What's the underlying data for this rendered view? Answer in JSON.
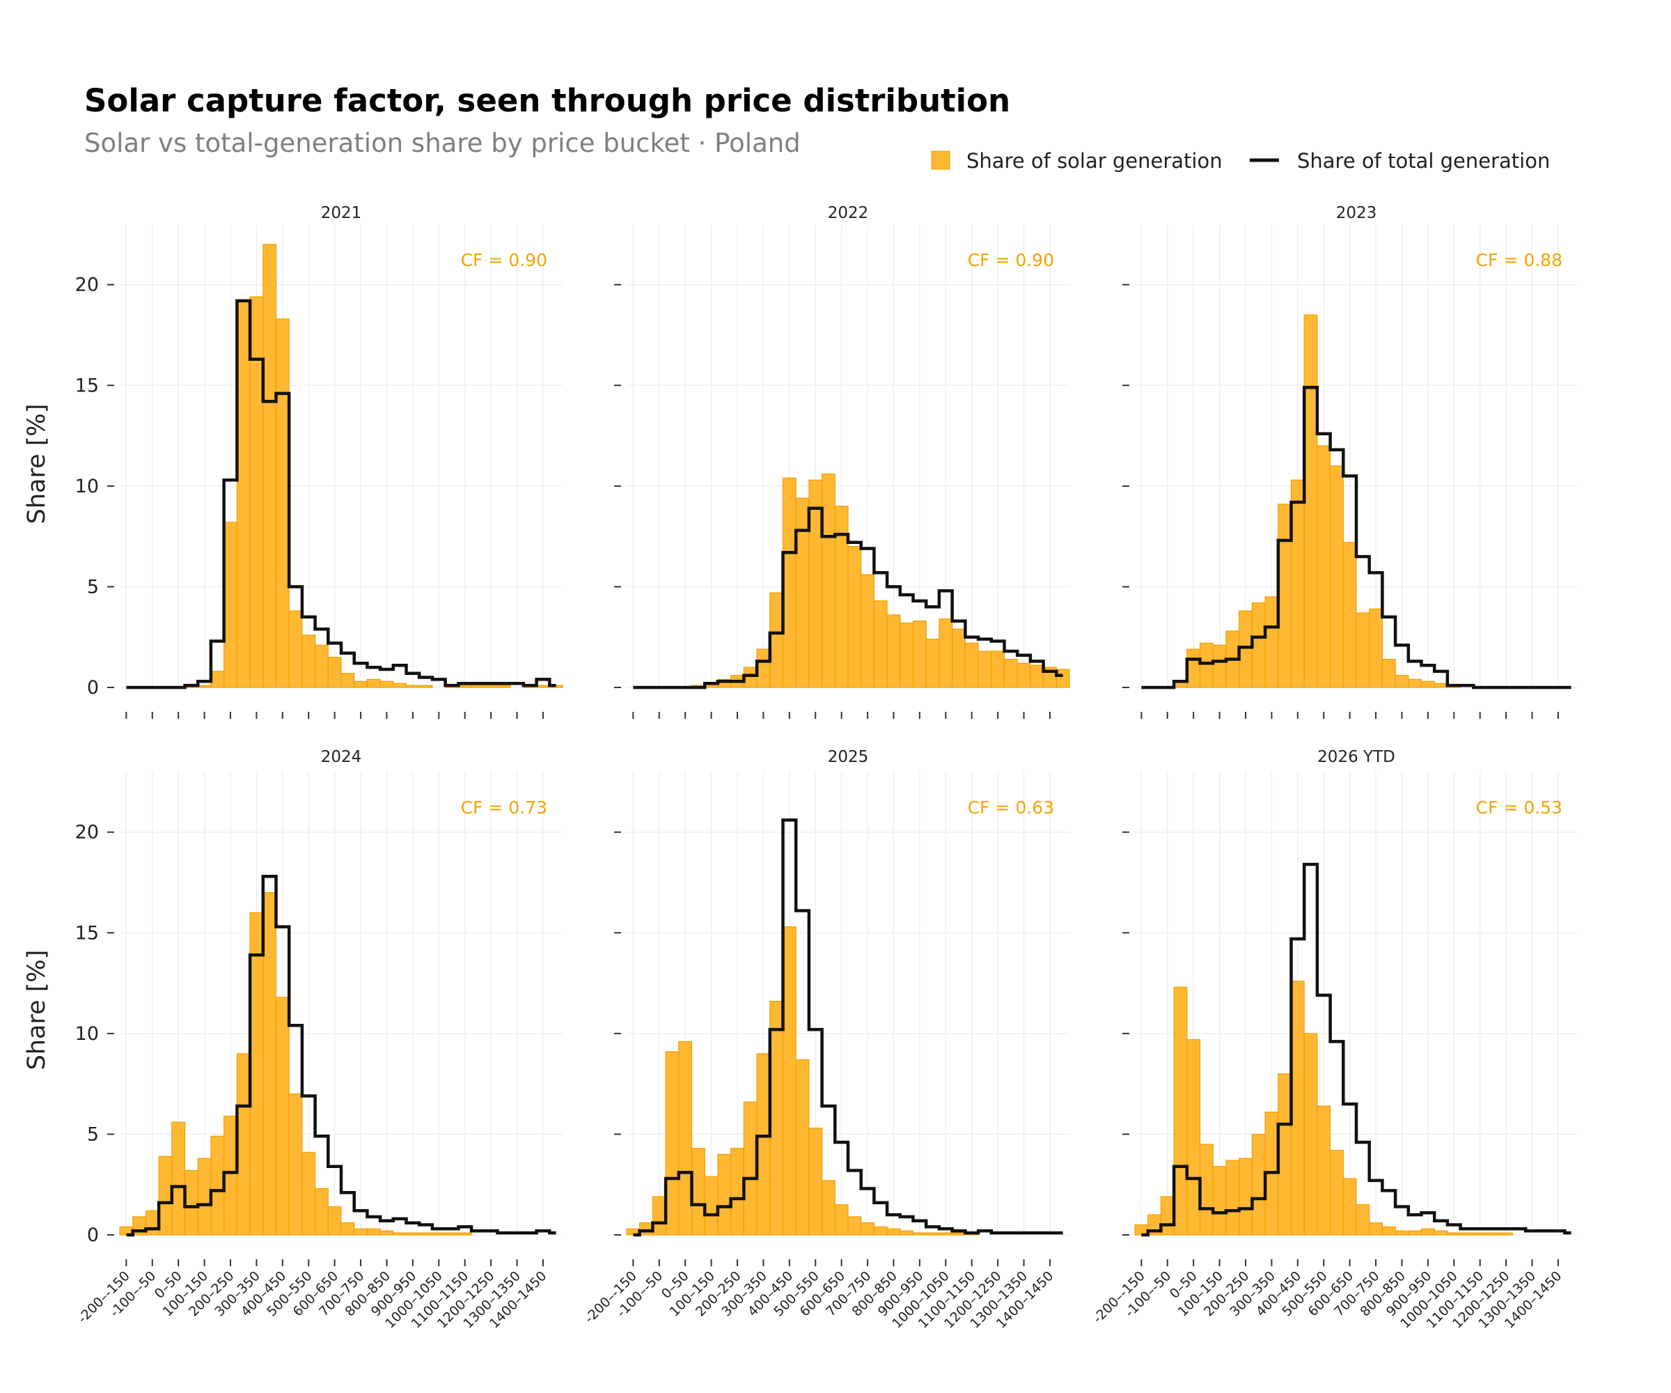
{
  "title": "Solar capture factor, seen through price distribution",
  "subtitle": "Solar vs total-generation share by price bucket · Poland",
  "legend": [
    {
      "label": "Share of solar generation",
      "kind": "bar",
      "color": "#ffb833"
    },
    {
      "label": "Share of total generation",
      "kind": "line",
      "color": "#111111"
    }
  ],
  "colors": {
    "solar_fill": "#ffb833",
    "solar_edge": "#f0a000",
    "total_line": "#111111",
    "cf_text": "#f4a300",
    "grid": "#ececec"
  },
  "chart_data": {
    "type": "bar",
    "ylabel": "Share [%]",
    "ylim": [
      0,
      23
    ],
    "yticks": [
      0,
      5,
      10,
      15,
      20
    ],
    "x_tick_labels": [
      "-200–-150",
      "-100–-50",
      "0–50",
      "100–150",
      "200–250",
      "300–350",
      "400–450",
      "500–550",
      "600–650",
      "700–750",
      "800–850",
      "900–950",
      "1000–1050",
      "1100–1150",
      "1200–1250",
      "1300–1350",
      "1400–1450"
    ],
    "categories": [
      "-200–-150",
      "-150–-100",
      "-100–-50",
      "-50–0",
      "0–50",
      "50–100",
      "100–150",
      "150–200",
      "200–250",
      "250–300",
      "300–350",
      "350–400",
      "400–450",
      "450–500",
      "500–550",
      "550–600",
      "600–650",
      "650–700",
      "700–750",
      "750–800",
      "800–850",
      "850–900",
      "900–950",
      "950–1000",
      "1000–1050",
      "1050–1100",
      "1100–1150",
      "1150–1200",
      "1200–1250",
      "1250–1300",
      "1300–1350",
      "1350–1400",
      "1400–1450",
      "1450–1500"
    ],
    "panels": [
      {
        "name": "2021",
        "cf": "CF = 0.90",
        "solar": [
          0,
          0,
          0,
          0,
          0,
          0.1,
          0.1,
          0.8,
          8.2,
          19.2,
          19.4,
          22.0,
          18.3,
          3.8,
          2.6,
          2.1,
          1.5,
          0.7,
          0.3,
          0.4,
          0.3,
          0.2,
          0.1,
          0.1,
          0,
          0.1,
          0.1,
          0.1,
          0.1,
          0.1,
          0,
          0.1,
          0.1,
          0.1
        ],
        "total": [
          0,
          0,
          0,
          0,
          0,
          0.1,
          0.3,
          2.3,
          10.3,
          19.2,
          16.3,
          14.2,
          14.6,
          5.0,
          3.5,
          2.9,
          2.2,
          1.7,
          1.2,
          1.0,
          0.9,
          1.1,
          0.7,
          0.5,
          0.4,
          0.1,
          0.2,
          0.2,
          0.2,
          0.2,
          0.2,
          0.1,
          0.4,
          0.1
        ]
      },
      {
        "name": "2022",
        "cf": "CF = 0.90",
        "solar": [
          0,
          0,
          0,
          0,
          0,
          0.1,
          0.2,
          0.4,
          0.6,
          1.0,
          1.9,
          4.7,
          10.4,
          9.4,
          10.3,
          10.6,
          9.0,
          7.0,
          5.6,
          4.3,
          3.6,
          3.2,
          3.3,
          2.4,
          3.4,
          2.9,
          2.2,
          1.8,
          1.8,
          1.4,
          1.2,
          1.1,
          1.0,
          0.9
        ],
        "total": [
          0,
          0,
          0,
          0,
          0,
          0,
          0.2,
          0.3,
          0.3,
          0.6,
          1.3,
          2.7,
          6.7,
          7.8,
          8.9,
          7.5,
          7.6,
          7.2,
          6.9,
          5.7,
          5.0,
          4.6,
          4.3,
          4.0,
          4.8,
          3.3,
          2.5,
          2.4,
          2.3,
          1.8,
          1.6,
          1.3,
          0.8,
          0.6
        ]
      },
      {
        "name": "2023",
        "cf": "CF = 0.88",
        "solar": [
          0,
          0,
          0,
          0.3,
          1.9,
          2.2,
          2.1,
          2.8,
          3.8,
          4.2,
          4.5,
          9.1,
          10.3,
          18.5,
          12.0,
          11.0,
          7.2,
          3.7,
          3.9,
          1.4,
          0.6,
          0.4,
          0.3,
          0.2,
          0.1,
          0,
          0,
          0,
          0,
          0,
          0,
          0,
          0,
          0
        ],
        "total": [
          0,
          0,
          0,
          0.3,
          1.4,
          1.2,
          1.3,
          1.4,
          2.0,
          2.5,
          3.0,
          7.3,
          9.2,
          14.9,
          12.6,
          11.8,
          10.5,
          6.5,
          5.7,
          3.5,
          2.1,
          1.3,
          1.1,
          0.8,
          0.1,
          0.1,
          0,
          0,
          0,
          0,
          0,
          0,
          0,
          0
        ]
      },
      {
        "name": "2024",
        "cf": "CF = 0.73",
        "solar": [
          0.4,
          0.9,
          1.2,
          3.9,
          5.6,
          3.2,
          3.8,
          4.9,
          5.9,
          9.0,
          16.0,
          17.0,
          11.8,
          7.0,
          4.1,
          2.3,
          1.4,
          0.6,
          0.3,
          0.3,
          0.2,
          0.1,
          0.1,
          0.1,
          0.1,
          0.1,
          0.1,
          0,
          0,
          0,
          0,
          0,
          0,
          0
        ],
        "total": [
          0,
          0.2,
          0.3,
          1.6,
          2.4,
          1.4,
          1.5,
          2.2,
          3.1,
          6.4,
          13.9,
          17.8,
          15.3,
          10.4,
          6.9,
          4.9,
          3.4,
          2.1,
          1.2,
          0.9,
          0.7,
          0.8,
          0.6,
          0.5,
          0.3,
          0.3,
          0.4,
          0.2,
          0.2,
          0.1,
          0.1,
          0.1,
          0.2,
          0.1
        ]
      },
      {
        "name": "2025",
        "cf": "CF = 0.63",
        "solar": [
          0.3,
          0.6,
          1.9,
          9.1,
          9.6,
          4.3,
          2.9,
          4.0,
          4.3,
          6.6,
          9.0,
          11.6,
          15.3,
          8.7,
          5.3,
          2.7,
          1.5,
          0.9,
          0.6,
          0.4,
          0.3,
          0.2,
          0.1,
          0.1,
          0.1,
          0.1,
          0.1,
          0,
          0,
          0,
          0,
          0,
          0,
          0
        ],
        "total": [
          0,
          0.2,
          0.6,
          2.8,
          3.1,
          1.5,
          1.0,
          1.4,
          1.8,
          2.8,
          4.9,
          10.2,
          20.6,
          16.1,
          10.2,
          6.4,
          4.6,
          3.2,
          2.3,
          1.6,
          1.0,
          0.9,
          0.7,
          0.4,
          0.3,
          0.2,
          0.1,
          0.2,
          0.1,
          0.1,
          0.1,
          0.1,
          0.1,
          0.1
        ]
      },
      {
        "name": "2026 YTD",
        "cf": "CF = 0.53",
        "solar": [
          0.5,
          1.0,
          1.9,
          12.3,
          9.7,
          4.5,
          3.4,
          3.7,
          3.8,
          5.0,
          6.1,
          8.0,
          12.6,
          10.0,
          6.4,
          4.2,
          2.8,
          1.5,
          0.6,
          0.4,
          0.2,
          0.2,
          0.3,
          0.2,
          0.1,
          0.1,
          0.1,
          0.1,
          0.1,
          0,
          0,
          0,
          0,
          0
        ],
        "total": [
          0,
          0.2,
          0.5,
          3.4,
          2.8,
          1.3,
          1.1,
          1.2,
          1.3,
          1.8,
          3.1,
          5.5,
          14.7,
          18.4,
          11.9,
          9.6,
          6.5,
          4.6,
          2.7,
          2.2,
          1.4,
          1.0,
          1.1,
          0.7,
          0.5,
          0.3,
          0.3,
          0.3,
          0.3,
          0.3,
          0.2,
          0.2,
          0.2,
          0.1
        ]
      }
    ]
  }
}
